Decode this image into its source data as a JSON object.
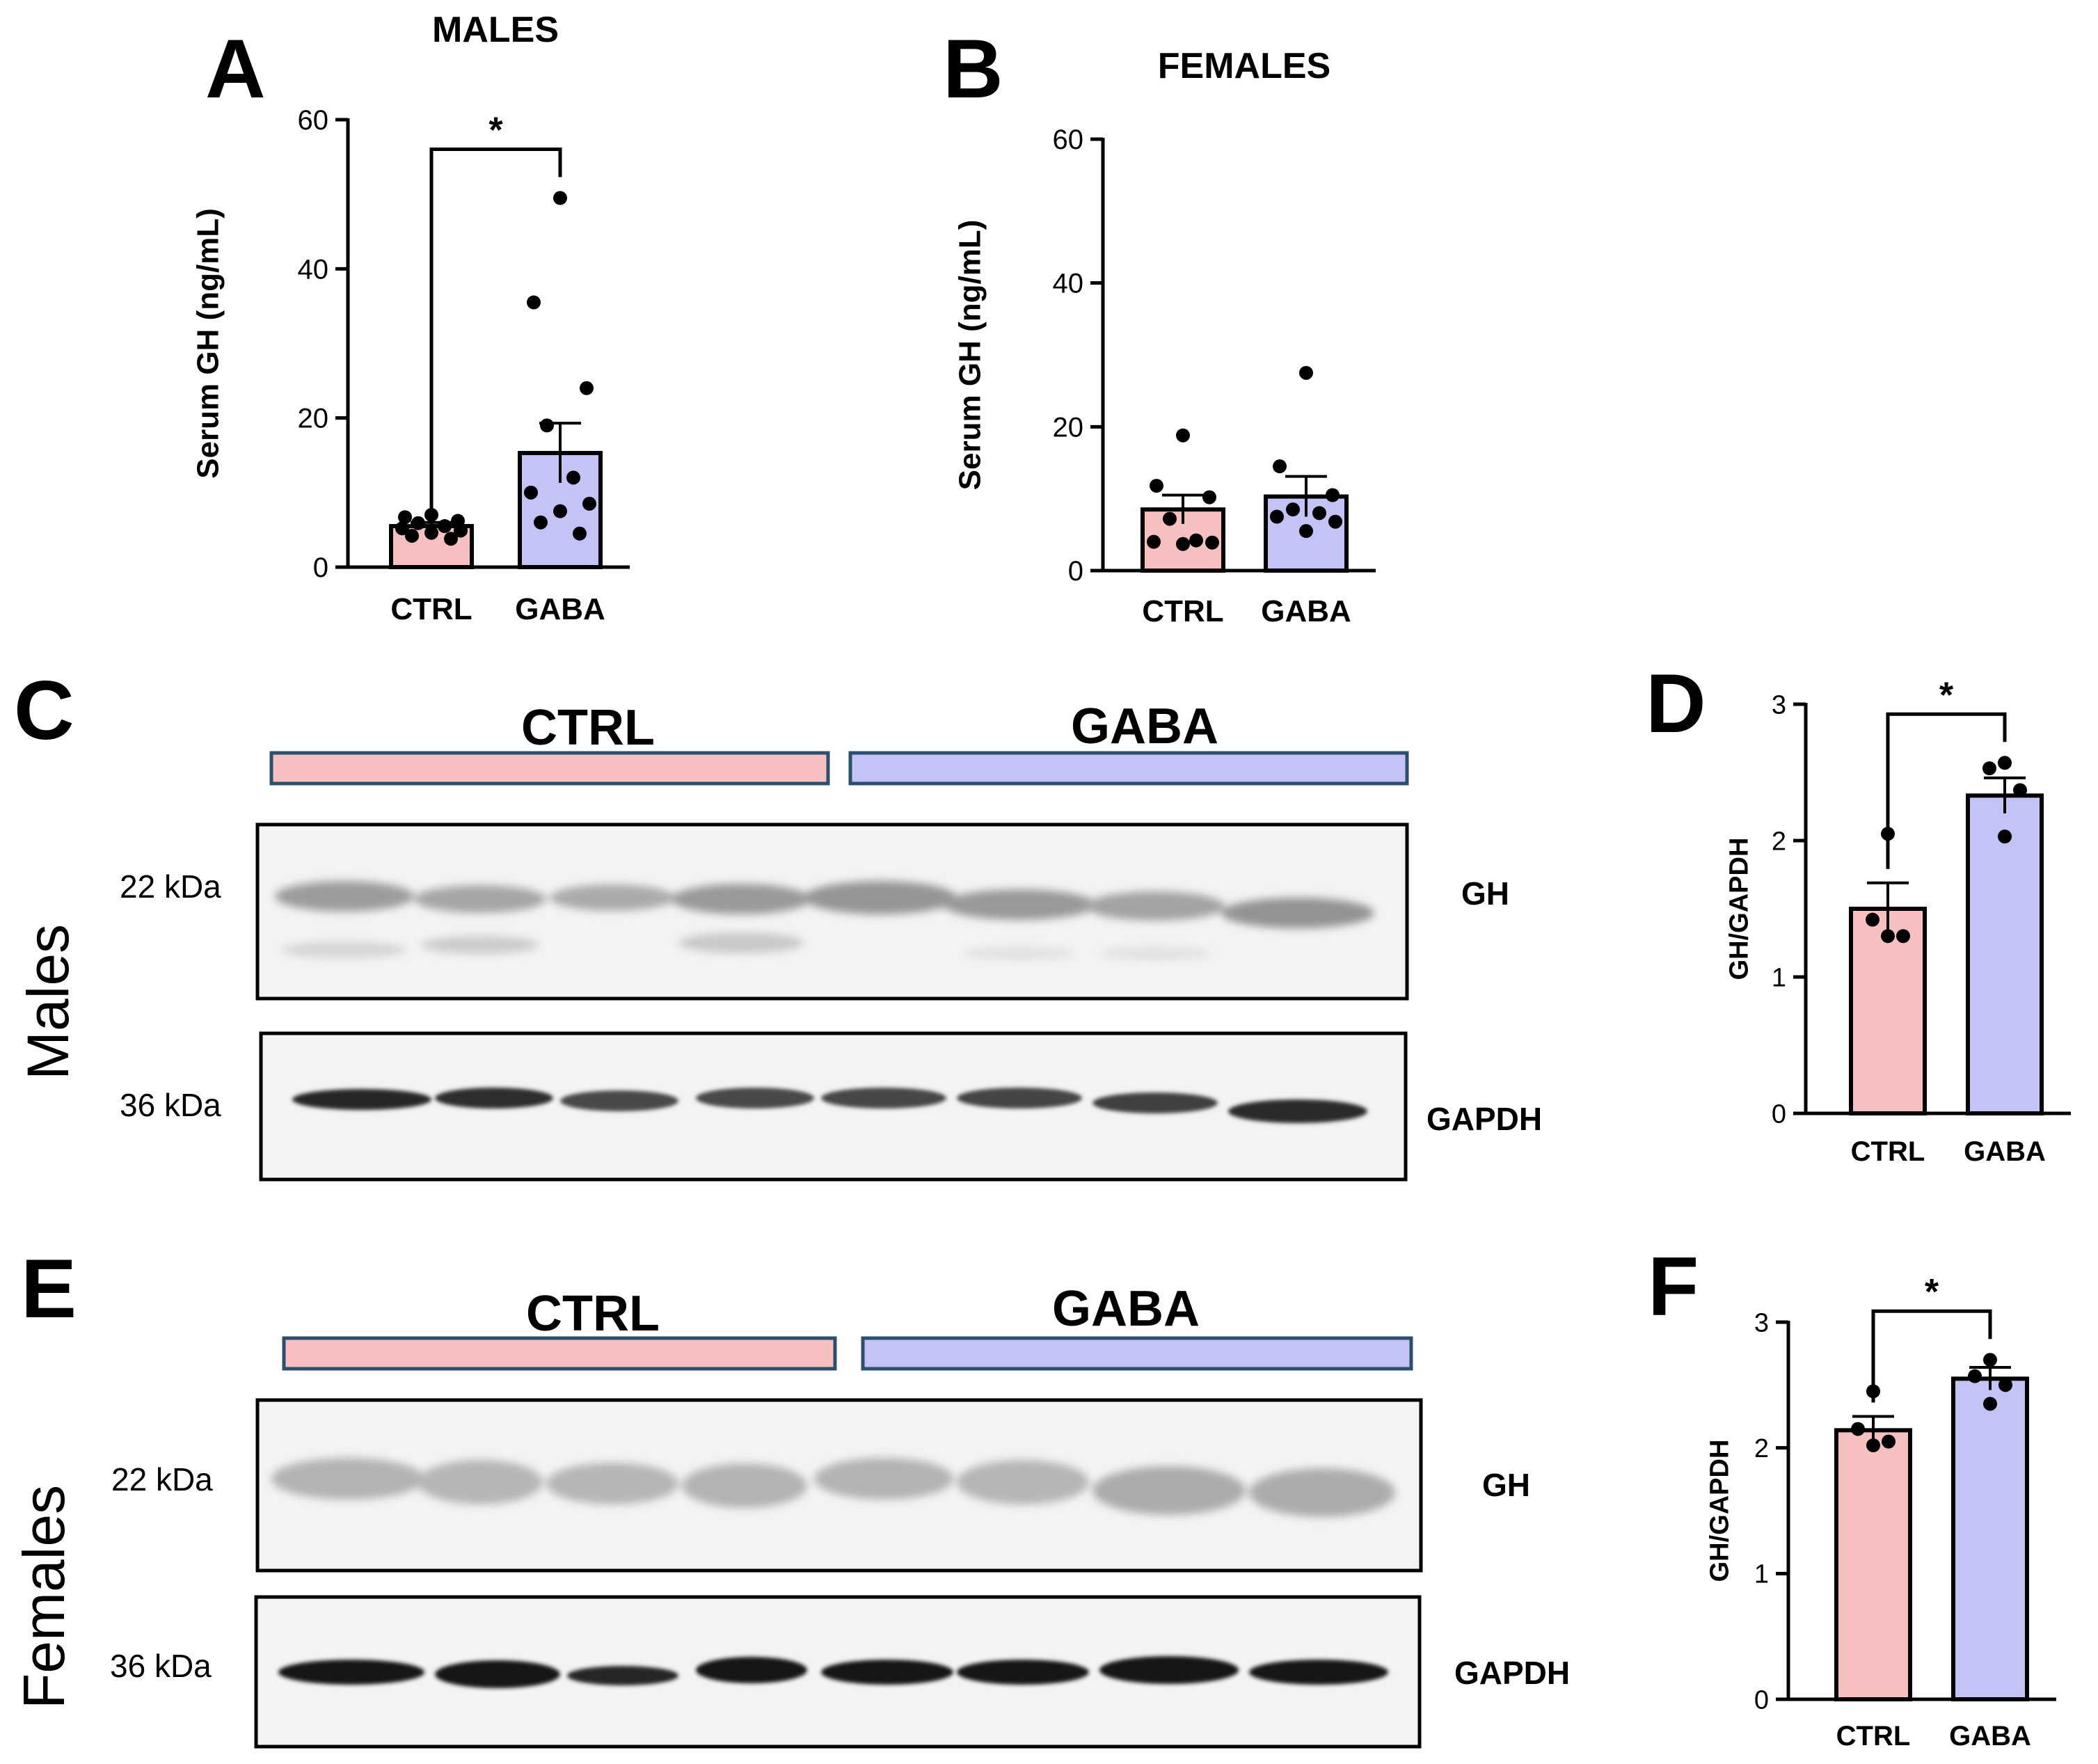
{
  "panels": {
    "A": {
      "letter": "A",
      "title": "MALES"
    },
    "B": {
      "letter": "B",
      "title": "FEMALES"
    },
    "C": {
      "letter": "C",
      "side_label": "Males"
    },
    "D": {
      "letter": "D"
    },
    "E": {
      "letter": "E",
      "side_label": "Females"
    },
    "F": {
      "letter": "F"
    }
  },
  "blots": {
    "groups": [
      "CTRL",
      "GABA"
    ],
    "bands": [
      {
        "kda": "22 kDa",
        "protein": "GH"
      },
      {
        "kda": "36 kDa",
        "protein": "GAPDH"
      }
    ],
    "lanes": 8,
    "colors": {
      "CTRL": "#f7c0c0",
      "GABA": "#c3c3f5"
    }
  },
  "chart_data": [
    {
      "panel": "A",
      "type": "bar",
      "title": "MALES",
      "ylabel": "Serum GH (ng/mL)",
      "ylim": [
        0,
        60
      ],
      "yticks": [
        0,
        20,
        40,
        60
      ],
      "categories": [
        "CTRL",
        "GABA"
      ],
      "values": [
        5.5,
        15.3
      ],
      "sem": [
        0.5,
        4.0
      ],
      "colors": [
        "#f7c0c0",
        "#c3c3f5"
      ],
      "points": [
        [
          7.0,
          6.7,
          6.2,
          5.9,
          5.5,
          5.2,
          4.9,
          4.6,
          4.2,
          3.8
        ],
        [
          49.5,
          35.5,
          24.0,
          19.0,
          12.0,
          10.0,
          8.5,
          7.5,
          6.0,
          4.5
        ]
      ],
      "significance": [
        {
          "from": 0,
          "to": 1,
          "label": "*"
        }
      ]
    },
    {
      "panel": "B",
      "type": "bar",
      "title": "FEMALES",
      "ylabel": "Serum GH (ng/mL)",
      "ylim": [
        0,
        60
      ],
      "yticks": [
        0,
        20,
        40,
        60
      ],
      "categories": [
        "CTRL",
        "GABA"
      ],
      "values": [
        8.5,
        10.3
      ],
      "sem": [
        2.0,
        2.8
      ],
      "colors": [
        "#f7c0c0",
        "#c3c3f5"
      ],
      "points": [
        [
          18.8,
          11.8,
          10.2,
          7.2,
          4.2,
          4.0,
          3.9,
          3.7
        ],
        [
          27.5,
          14.5,
          10.5,
          8.5,
          8.0,
          7.5,
          6.8,
          5.5
        ]
      ],
      "significance": []
    },
    {
      "panel": "D",
      "type": "bar",
      "ylabel": "GH/GAPDH",
      "ylim": [
        0,
        3
      ],
      "yticks": [
        0,
        1,
        2,
        3
      ],
      "categories": [
        "CTRL",
        "GABA"
      ],
      "values": [
        1.5,
        2.33
      ],
      "sem": [
        0.19,
        0.13
      ],
      "colors": [
        "#f7c0c0",
        "#c3c3f5"
      ],
      "points": [
        [
          2.05,
          1.42,
          1.3,
          1.3
        ],
        [
          2.57,
          2.53,
          2.37,
          2.03
        ]
      ],
      "significance": [
        {
          "from": 0,
          "to": 1,
          "label": "*"
        }
      ]
    },
    {
      "panel": "F",
      "type": "bar",
      "ylabel": "GH/GAPDH",
      "ylim": [
        0,
        3
      ],
      "yticks": [
        0,
        1,
        2,
        3
      ],
      "categories": [
        "CTRL",
        "GABA"
      ],
      "values": [
        2.14,
        2.55
      ],
      "sem": [
        0.11,
        0.09
      ],
      "colors": [
        "#f7c0c0",
        "#c3c3f5"
      ],
      "points": [
        [
          2.45,
          2.15,
          2.05,
          2.02
        ],
        [
          2.7,
          2.57,
          2.5,
          2.35
        ]
      ],
      "significance": [
        {
          "from": 0,
          "to": 1,
          "label": "*"
        }
      ]
    }
  ]
}
